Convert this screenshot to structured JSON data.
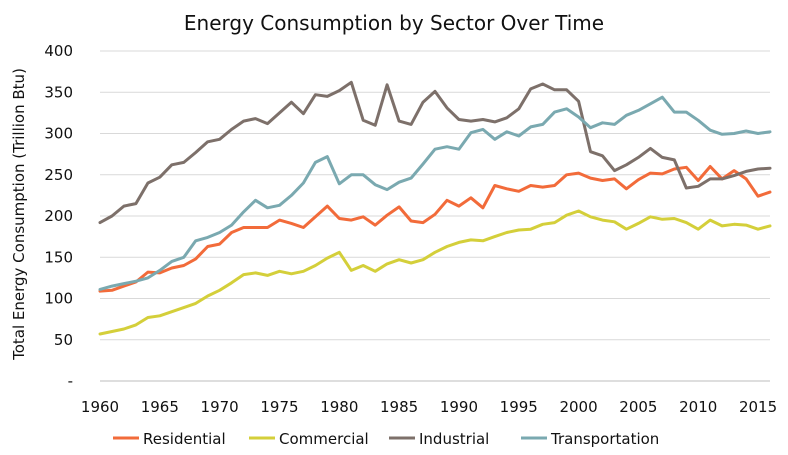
{
  "chart_data": {
    "type": "line",
    "title": "Energy Consumption by Sector Over Time",
    "xlabel": "",
    "ylabel": "Total Energy Consumption (Trillion Btu)",
    "xlim": [
      1960,
      2016
    ],
    "ylim": [
      0,
      400
    ],
    "x_ticks": [
      1960,
      1965,
      1970,
      1975,
      1980,
      1985,
      1990,
      1995,
      2000,
      2005,
      2010,
      2015
    ],
    "y_ticks": [
      {
        "value": 0,
        "label": "-"
      },
      {
        "value": 50,
        "label": "50"
      },
      {
        "value": 100,
        "label": "100"
      },
      {
        "value": 150,
        "label": "150"
      },
      {
        "value": 200,
        "label": "200"
      },
      {
        "value": 250,
        "label": "250"
      },
      {
        "value": 300,
        "label": "300"
      },
      {
        "value": 350,
        "label": "350"
      },
      {
        "value": 400,
        "label": "400"
      }
    ],
    "grid": "horizontal",
    "legend_position": "bottom",
    "x": [
      1960,
      1961,
      1962,
      1963,
      1964,
      1965,
      1966,
      1967,
      1968,
      1969,
      1970,
      1971,
      1972,
      1973,
      1974,
      1975,
      1976,
      1977,
      1978,
      1979,
      1980,
      1981,
      1982,
      1983,
      1984,
      1985,
      1986,
      1987,
      1988,
      1989,
      1990,
      1991,
      1992,
      1993,
      1994,
      1995,
      1996,
      1997,
      1998,
      1999,
      2000,
      2001,
      2002,
      2003,
      2004,
      2005,
      2006,
      2007,
      2008,
      2009,
      2010,
      2011,
      2012,
      2013,
      2014,
      2015,
      2016
    ],
    "series": [
      {
        "name": "Residential",
        "color": "#f26b3a",
        "values": [
          109,
          110,
          115,
          120,
          132,
          131,
          137,
          140,
          148,
          163,
          166,
          180,
          186,
          186,
          186,
          195,
          191,
          186,
          199,
          212,
          197,
          195,
          199,
          189,
          201,
          211,
          194,
          192,
          202,
          219,
          212,
          222,
          210,
          237,
          233,
          230,
          237,
          235,
          237,
          250,
          252,
          246,
          243,
          245,
          233,
          244,
          252,
          251,
          257,
          259,
          243,
          260,
          245,
          255,
          245,
          224,
          229
        ]
      },
      {
        "name": "Commercial",
        "color": "#d4cf3a",
        "values": [
          57,
          60,
          63,
          68,
          77,
          79,
          84,
          89,
          94,
          103,
          110,
          119,
          129,
          131,
          128,
          133,
          130,
          133,
          140,
          149,
          156,
          134,
          140,
          133,
          142,
          147,
          143,
          147,
          156,
          163,
          168,
          171,
          170,
          175,
          180,
          183,
          184,
          190,
          192,
          201,
          206,
          199,
          195,
          193,
          184,
          191,
          199,
          196,
          197,
          192,
          184,
          195,
          188,
          190,
          189,
          184,
          188
        ]
      },
      {
        "name": "Industrial",
        "color": "#7d706a",
        "values": [
          192,
          200,
          212,
          215,
          240,
          247,
          262,
          265,
          277,
          290,
          293,
          305,
          315,
          318,
          312,
          325,
          338,
          324,
          347,
          345,
          352,
          362,
          316,
          310,
          359,
          315,
          311,
          338,
          351,
          331,
          317,
          315,
          317,
          314,
          319,
          330,
          354,
          360,
          353,
          353,
          339,
          278,
          273,
          255,
          262,
          271,
          282,
          271,
          268,
          234,
          236,
          245,
          245,
          249,
          254,
          257,
          258
        ]
      },
      {
        "name": "Transportation",
        "color": "#7aa9b0",
        "values": [
          111,
          115,
          118,
          121,
          125,
          134,
          145,
          150,
          170,
          174,
          180,
          189,
          205,
          219,
          210,
          213,
          225,
          240,
          265,
          272,
          239,
          250,
          250,
          238,
          232,
          241,
          246,
          263,
          281,
          284,
          281,
          301,
          305,
          293,
          302,
          297,
          308,
          311,
          326,
          330,
          320,
          307,
          313,
          311,
          322,
          328,
          336,
          344,
          326,
          326,
          316,
          304,
          299,
          300,
          303,
          300,
          302
        ]
      }
    ]
  }
}
